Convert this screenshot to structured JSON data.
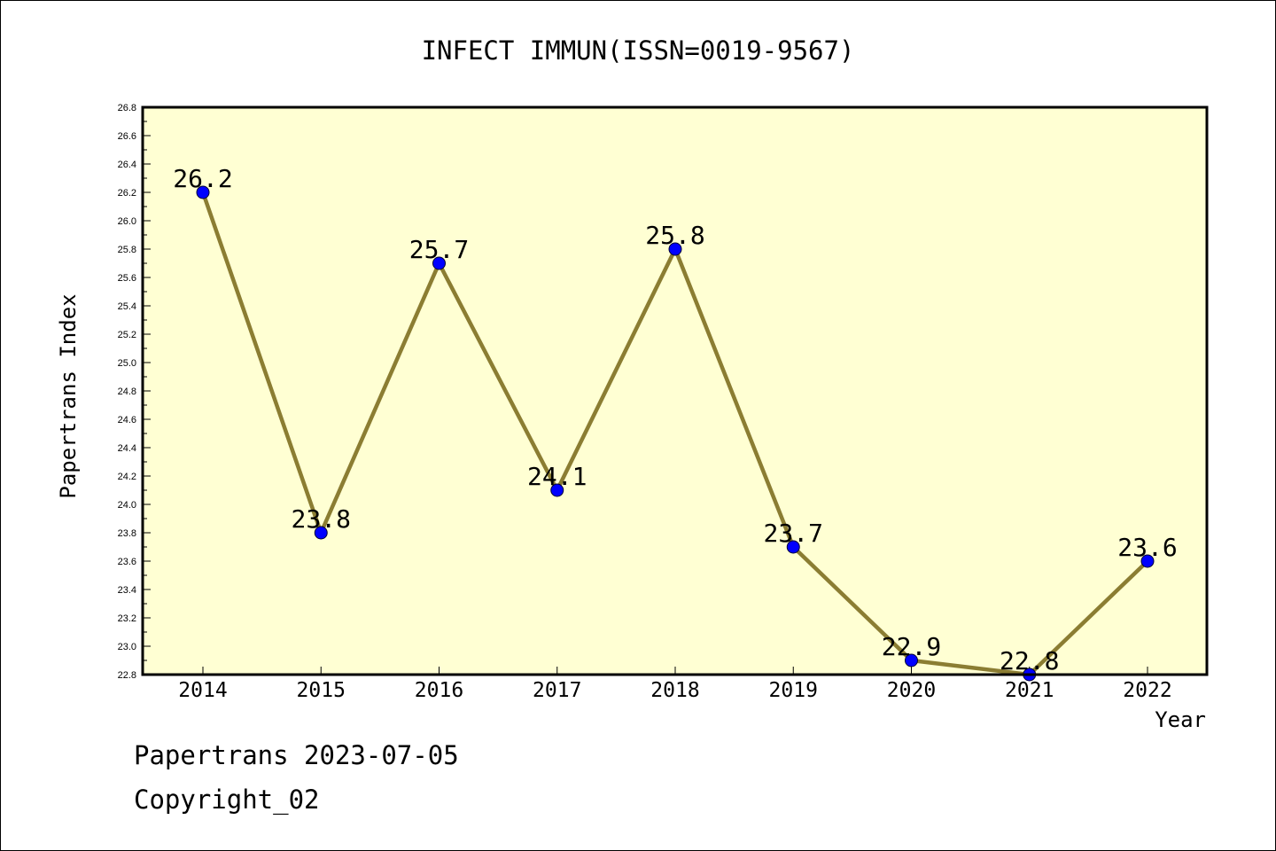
{
  "chart_data": {
    "type": "line",
    "title": "INFECT IMMUN(ISSN=0019-9567)",
    "xlabel": "Year",
    "ylabel": "Papertrans Index",
    "categories": [
      "2014",
      "2015",
      "2016",
      "2017",
      "2018",
      "2019",
      "2020",
      "2021",
      "2022"
    ],
    "values": [
      26.2,
      23.8,
      25.7,
      24.1,
      25.8,
      23.7,
      22.9,
      22.8,
      23.6
    ],
    "value_labels": [
      "26.2",
      "23.8",
      "25.7",
      "24.1",
      "25.8",
      "23.7",
      "22.9",
      "22.8",
      "23.6"
    ],
    "ylim": [
      22.8,
      26.8
    ],
    "y_ticks": [
      "22.8",
      "23.0",
      "23.2",
      "23.4",
      "23.6",
      "23.8",
      "24.0",
      "24.2",
      "24.4",
      "24.6",
      "24.8",
      "25.0",
      "25.2",
      "25.4",
      "25.6",
      "25.8",
      "26.0",
      "26.2",
      "26.4",
      "26.6",
      "26.8"
    ],
    "grid": false,
    "colors": {
      "plot_background": "#ffffd3",
      "line": "#8b7d32",
      "marker": "#0000ff"
    }
  },
  "footer": {
    "line1": "Papertrans 2023-07-05",
    "line2": "Copyright_02"
  }
}
